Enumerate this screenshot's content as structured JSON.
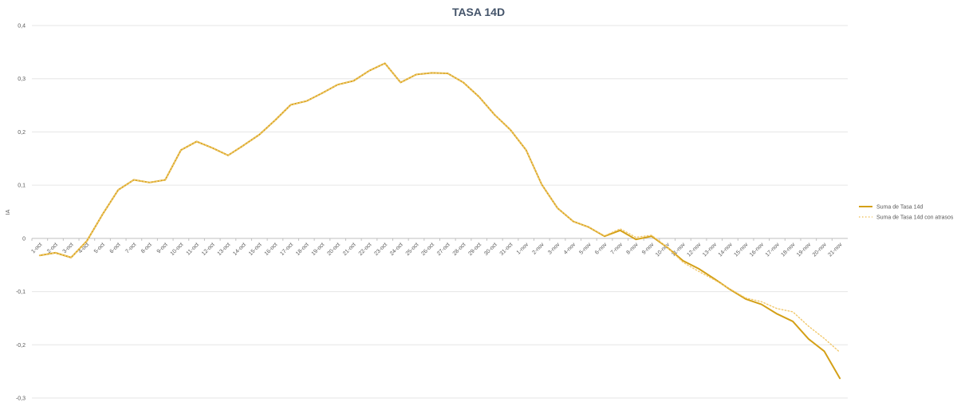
{
  "chart_data": {
    "type": "line",
    "title": "TASA 14D",
    "xlabel": "",
    "ylabel": "IA",
    "ylim": [
      -0.3,
      0.4
    ],
    "yticks": [
      "-0,3",
      "-0,2",
      "-0,1",
      "0",
      "0,1",
      "0,2",
      "0,3",
      "0,4"
    ],
    "grid": true,
    "legend_position": "right",
    "categories": [
      "1-oct",
      "2-oct",
      "3-oct",
      "4-oct",
      "5-oct",
      "6-oct",
      "7-oct",
      "8-oct",
      "9-oct",
      "10-oct",
      "11-oct",
      "12-oct",
      "13-oct",
      "14-oct",
      "15-oct",
      "16-oct",
      "17-oct",
      "18-oct",
      "19-oct",
      "20-oct",
      "21-oct",
      "22-oct",
      "23-oct",
      "24-oct",
      "25-oct",
      "26-oct",
      "27-oct",
      "28-oct",
      "29-oct",
      "30-oct",
      "31-oct",
      "1-nov",
      "2-nov",
      "3-nov",
      "4-nov",
      "5-nov",
      "6-nov",
      "7-nov",
      "8-nov",
      "9-nov",
      "10-nov",
      "11-nov",
      "12-nov",
      "13-nov",
      "14-nov",
      "15-nov",
      "16-nov",
      "17-nov",
      "18-nov",
      "19-nov",
      "20-nov",
      "21-nov"
    ],
    "series": [
      {
        "name": "Suma de Tasa 14d",
        "color": "#d4a017",
        "style": "solid",
        "values": [
          -0.032,
          -0.027,
          -0.036,
          -0.005,
          0.045,
          0.091,
          0.11,
          0.105,
          0.11,
          0.166,
          0.182,
          0.17,
          0.156,
          0.175,
          0.195,
          0.222,
          0.251,
          0.258,
          0.273,
          0.289,
          0.296,
          0.315,
          0.329,
          0.293,
          0.308,
          0.311,
          0.31,
          0.293,
          0.266,
          0.232,
          0.204,
          0.166,
          0.101,
          0.057,
          0.032,
          0.021,
          0.004,
          0.015,
          -0.002,
          0.004,
          -0.017,
          -0.042,
          -0.057,
          -0.076,
          -0.096,
          -0.114,
          -0.124,
          -0.142,
          -0.156,
          -0.189,
          -0.212,
          -0.263
        ]
      },
      {
        "name": "Suma de Tasa 14d con atrasos",
        "color": "#f2c86b",
        "style": "dotted",
        "values": [
          -0.032,
          -0.027,
          -0.036,
          -0.005,
          0.045,
          0.091,
          0.11,
          0.105,
          0.11,
          0.166,
          0.182,
          0.17,
          0.156,
          0.175,
          0.195,
          0.222,
          0.251,
          0.258,
          0.273,
          0.289,
          0.296,
          0.315,
          0.329,
          0.293,
          0.308,
          0.311,
          0.31,
          0.293,
          0.266,
          0.232,
          0.204,
          0.166,
          0.101,
          0.057,
          0.032,
          0.021,
          0.005,
          0.018,
          0.002,
          0.006,
          -0.017,
          -0.045,
          -0.062,
          -0.078,
          -0.095,
          -0.112,
          -0.119,
          -0.132,
          -0.138,
          -0.165,
          -0.188,
          -0.214
        ]
      }
    ]
  }
}
